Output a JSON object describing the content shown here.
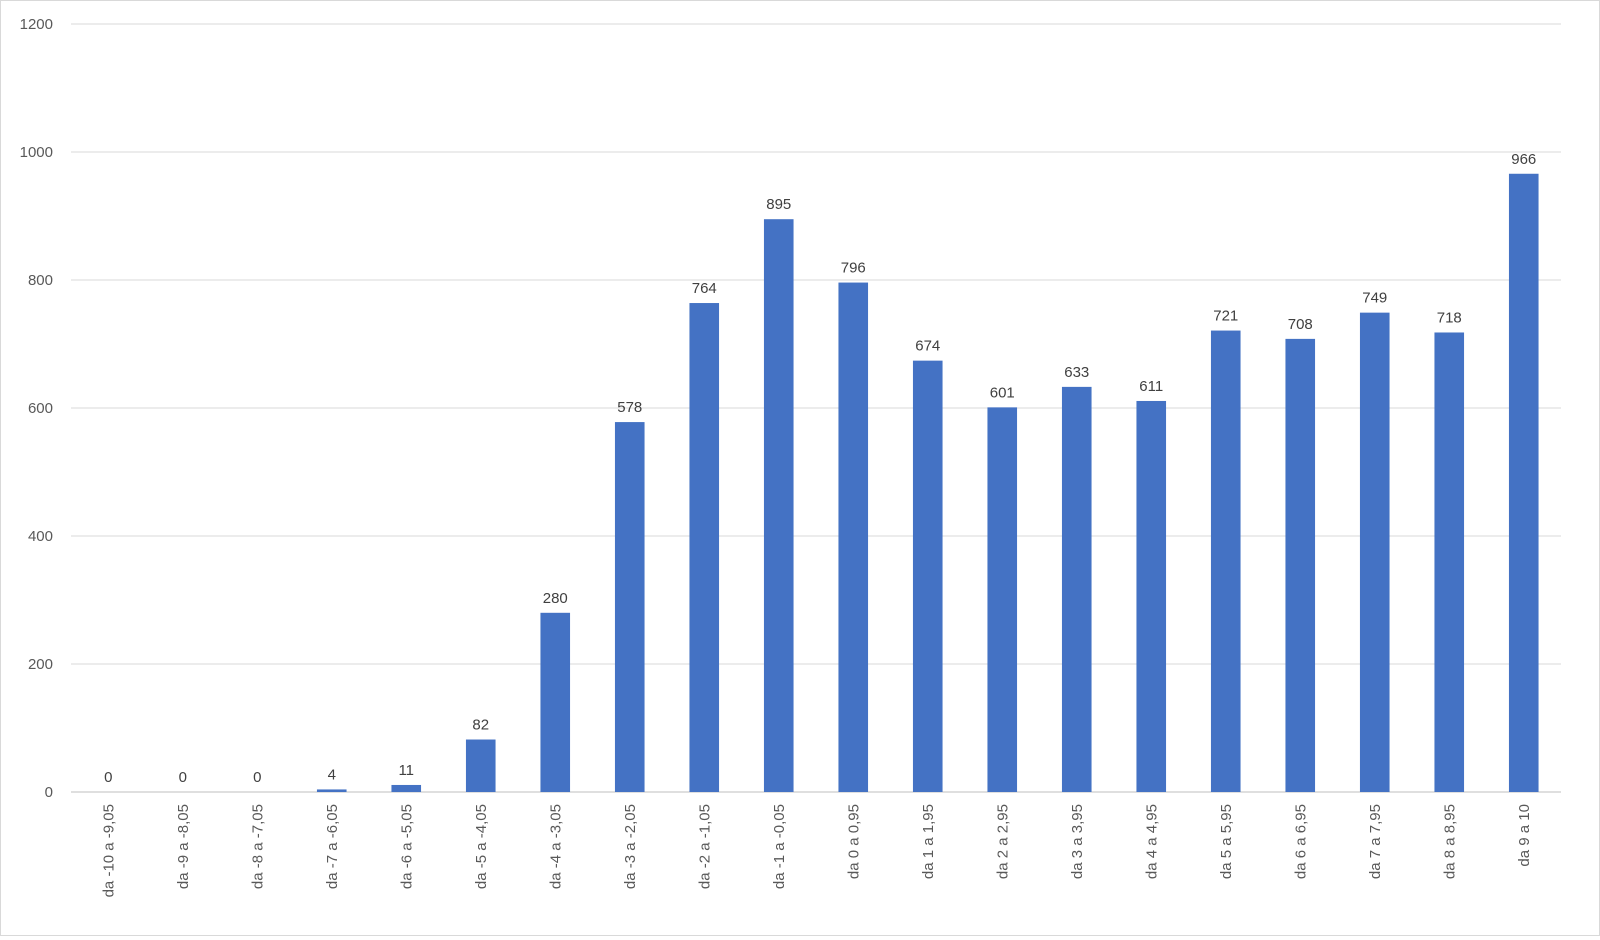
{
  "chart_data": {
    "type": "bar",
    "title": "",
    "xlabel": "",
    "ylabel": "",
    "ylim": [
      0,
      1200
    ],
    "yticks": [
      0,
      200,
      400,
      600,
      800,
      1000,
      1200
    ],
    "grid": true,
    "legend": "none",
    "bar_color": "#4472C4",
    "categories": [
      "da -10 a -9,05",
      "da -9 a -8,05",
      "da -8 a -7,05",
      "da -7 a -6,05",
      "da -6 a -5,05",
      "da -5 a -4,05",
      "da -4 a -3,05",
      "da -3 a -2,05",
      "da -2 a -1,05",
      "da -1 a -0,05",
      "da 0 a 0,95",
      "da 1 a 1,95",
      "da 2 a 2,95",
      "da 3 a 3,95",
      "da 4 a 4,95",
      "da 5 a 5,95",
      "da 6 a 6,95",
      "da 7 a 7,95",
      "da 8 a 8,95",
      "da 9 a 10"
    ],
    "values": [
      0,
      0,
      0,
      4,
      11,
      82,
      280,
      578,
      764,
      895,
      796,
      674,
      601,
      633,
      611,
      721,
      708,
      749,
      718,
      966
    ]
  }
}
